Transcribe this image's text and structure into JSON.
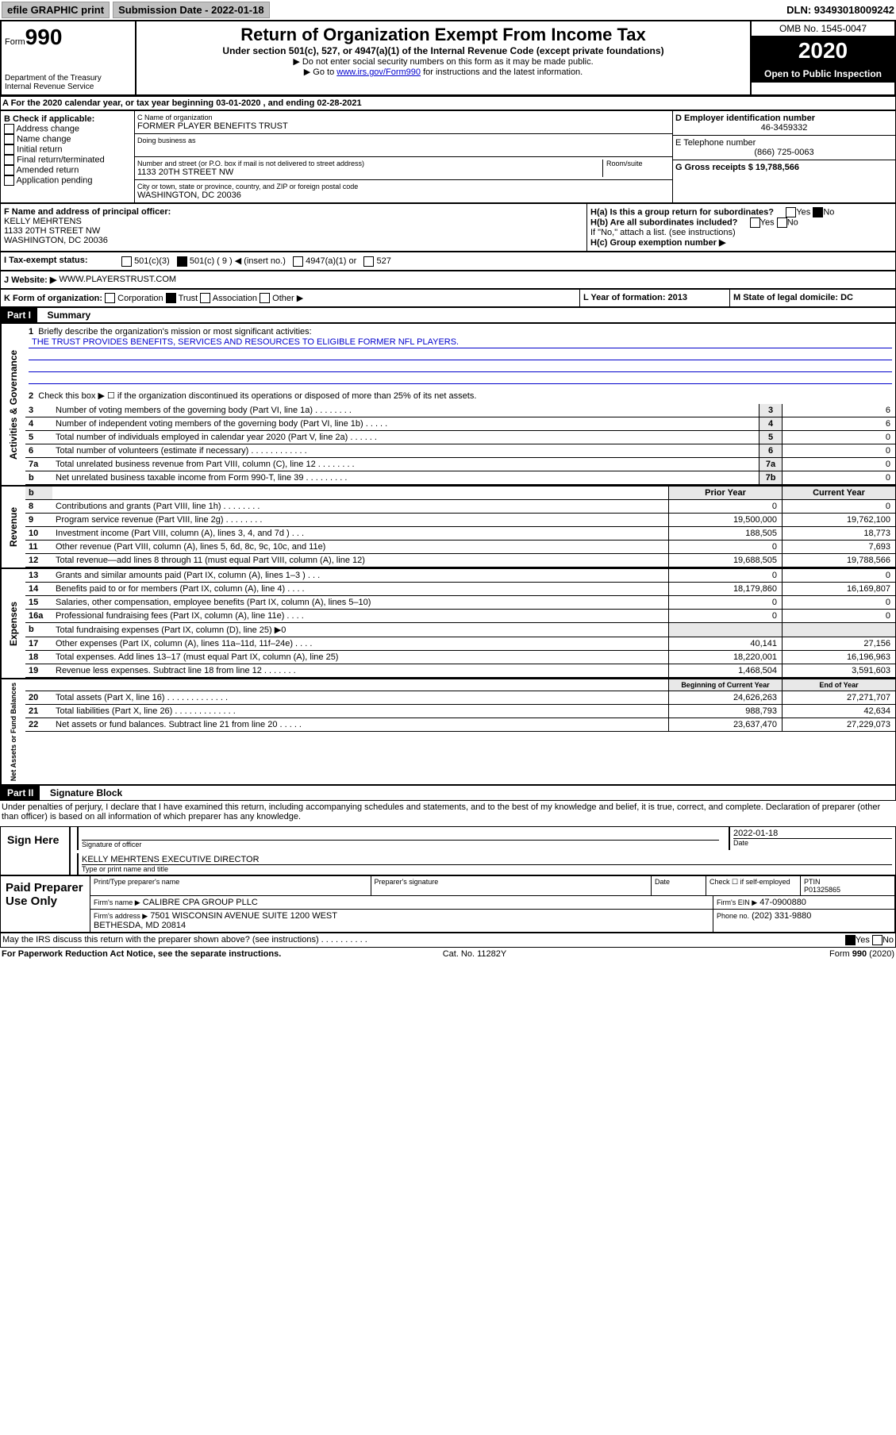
{
  "topbar": {
    "efile": "efile GRAPHIC print",
    "subdate_label": "Submission Date - 2022-01-18",
    "dln": "DLN: 93493018009242"
  },
  "header": {
    "form_label": "Form",
    "form_num": "990",
    "dept": "Department of the Treasury\nInternal Revenue Service",
    "title": "Return of Organization Exempt From Income Tax",
    "sub1": "Under section 501(c), 527, or 4947(a)(1) of the Internal Revenue Code (except private foundations)",
    "sub2": "▶ Do not enter social security numbers on this form as it may be made public.",
    "sub3_a": "▶ Go to ",
    "sub3_link": "www.irs.gov/Form990",
    "sub3_b": " for instructions and the latest information.",
    "omb": "OMB No. 1545-0047",
    "year": "2020",
    "open": "Open to Public Inspection"
  },
  "rowA": "A For the 2020 calendar year, or tax year beginning 03-01-2020    , and ending 02-28-2021",
  "sectB": {
    "label": "B Check if applicable:",
    "opts": [
      "Address change",
      "Name change",
      "Initial return",
      "Final return/terminated",
      "Amended return",
      "Application pending"
    ]
  },
  "sectC": {
    "name_label": "C Name of organization",
    "name": "FORMER PLAYER BENEFITS TRUST",
    "dba_label": "Doing business as",
    "addr_label": "Number and street (or P.O. box if mail is not delivered to street address)",
    "room_label": "Room/suite",
    "addr": "1133 20TH STREET NW",
    "city_label": "City or town, state or province, country, and ZIP or foreign postal code",
    "city": "WASHINGTON, DC  20036"
  },
  "sectD": {
    "label": "D Employer identification number",
    "val": "46-3459332"
  },
  "sectE": {
    "label": "E Telephone number",
    "val": "(866) 725-0063"
  },
  "sectG": {
    "label": "G Gross receipts $ 19,788,566"
  },
  "sectF": {
    "label": "F  Name and address of principal officer:",
    "name": "KELLY MEHRTENS",
    "addr": "1133 20TH STREET NW",
    "city": "WASHINGTON, DC  20036"
  },
  "sectH": {
    "a": "H(a)  Is this a group return for subordinates?",
    "b": "H(b)  Are all subordinates included?",
    "note": "If \"No,\" attach a list. (see instructions)",
    "c": "H(c)  Group exemption number ▶",
    "yes": "Yes",
    "no": "No"
  },
  "sectI": "I    Tax-exempt status:",
  "sectI_opts": {
    "a": "501(c)(3)",
    "b": "501(c) ( 9 ) ◀ (insert no.)",
    "c": "4947(a)(1) or",
    "d": "527"
  },
  "sectJ": {
    "label": "J   Website: ▶",
    "val": "WWW.PLAYERSTRUST.COM"
  },
  "sectK": {
    "label": "K Form of organization:",
    "opts": [
      "Corporation",
      "Trust",
      "Association",
      "Other ▶"
    ]
  },
  "sectL": "L Year of formation: 2013",
  "sectM": "M State of legal domicile: DC",
  "part1": {
    "hdr": "Part I",
    "title": "Summary",
    "side1": "Activities & Governance",
    "l1": "Briefly describe the organization's mission or most significant activities:",
    "mission": "THE TRUST PROVIDES BENEFITS, SERVICES AND RESOURCES TO ELIGIBLE FORMER NFL PLAYERS.",
    "l2": "Check this box ▶ ☐  if the organization discontinued its operations or disposed of more than 25% of its net assets.",
    "lines_gov": [
      {
        "n": "3",
        "t": "Number of voting members of the governing body (Part VI, line 1a)   .    .    .    .    .    .    .    .",
        "c": "3",
        "v": "6"
      },
      {
        "n": "4",
        "t": "Number of independent voting members of the governing body (Part VI, line 1b)   .    .    .    .    .",
        "c": "4",
        "v": "6"
      },
      {
        "n": "5",
        "t": "Total number of individuals employed in calendar year 2020 (Part V, line 2a)   .    .    .    .    .    .",
        "c": "5",
        "v": "0"
      },
      {
        "n": "6",
        "t": "Total number of volunteers (estimate if necessary)   .    .    .    .    .    .    .    .    .    .    .    .",
        "c": "6",
        "v": "0"
      },
      {
        "n": "7a",
        "t": "Total unrelated business revenue from Part VIII, column (C), line 12   .    .    .    .    .    .    .    .",
        "c": "7a",
        "v": "0"
      },
      {
        "n": "b",
        "t": "Net unrelated business taxable income from Form 990-T, line 39   .    .    .    .    .    .    .    .    .",
        "c": "7b",
        "v": "0"
      }
    ],
    "side2": "Revenue",
    "col_prior": "Prior Year",
    "col_curr": "Current Year",
    "lines_rev": [
      {
        "n": "8",
        "t": "Contributions and grants (Part VIII, line 1h)   .    .    .    .    .    .    .    .",
        "p": "0",
        "c": "0"
      },
      {
        "n": "9",
        "t": "Program service revenue (Part VIII, line 2g)   .    .    .    .    .    .    .    .",
        "p": "19,500,000",
        "c": "19,762,100"
      },
      {
        "n": "10",
        "t": "Investment income (Part VIII, column (A), lines 3, 4, and 7d )   .    .    .",
        "p": "188,505",
        "c": "18,773"
      },
      {
        "n": "11",
        "t": "Other revenue (Part VIII, column (A), lines 5, 6d, 8c, 9c, 10c, and 11e)",
        "p": "0",
        "c": "7,693"
      },
      {
        "n": "12",
        "t": "Total revenue—add lines 8 through 11 (must equal Part VIII, column (A), line 12)",
        "p": "19,688,505",
        "c": "19,788,566"
      }
    ],
    "side3": "Expenses",
    "lines_exp": [
      {
        "n": "13",
        "t": "Grants and similar amounts paid (Part IX, column (A), lines 1–3 )   .    .    .",
        "p": "0",
        "c": "0"
      },
      {
        "n": "14",
        "t": "Benefits paid to or for members (Part IX, column (A), line 4)   .    .    .    .",
        "p": "18,179,860",
        "c": "16,169,807"
      },
      {
        "n": "15",
        "t": "Salaries, other compensation, employee benefits (Part IX, column (A), lines 5–10)",
        "p": "0",
        "c": "0"
      },
      {
        "n": "16a",
        "t": "Professional fundraising fees (Part IX, column (A), line 11e)   .    .    .    .",
        "p": "0",
        "c": "0"
      },
      {
        "n": "b",
        "t": "Total fundraising expenses (Part IX, column (D), line 25) ▶0",
        "p": "",
        "c": ""
      },
      {
        "n": "17",
        "t": "Other expenses (Part IX, column (A), lines 11a–11d, 11f–24e)   .    .    .    .",
        "p": "40,141",
        "c": "27,156"
      },
      {
        "n": "18",
        "t": "Total expenses. Add lines 13–17 (must equal Part IX, column (A), line 25)",
        "p": "18,220,001",
        "c": "16,196,963"
      },
      {
        "n": "19",
        "t": "Revenue less expenses. Subtract line 18 from line 12   .    .    .    .    .    .    .",
        "p": "1,468,504",
        "c": "3,591,603"
      }
    ],
    "side4": "Net Assets or Fund Balances",
    "col_beg": "Beginning of Current Year",
    "col_end": "End of Year",
    "lines_net": [
      {
        "n": "20",
        "t": "Total assets (Part X, line 16)   .    .    .    .    .    .    .    .    .    .    .    .    .",
        "p": "24,626,263",
        "c": "27,271,707"
      },
      {
        "n": "21",
        "t": "Total liabilities (Part X, line 26)   .    .    .    .    .    .    .    .    .    .    .    .    .",
        "p": "988,793",
        "c": "42,634"
      },
      {
        "n": "22",
        "t": "Net assets or fund balances. Subtract line 21 from line 20   .    .    .    .    .",
        "p": "23,637,470",
        "c": "27,229,073"
      }
    ]
  },
  "part2": {
    "hdr": "Part II",
    "title": "Signature Block",
    "decl": "Under penalties of perjury, I declare that I have examined this return, including accompanying schedules and statements, and to the best of my knowledge and belief, it is true, correct, and complete. Declaration of preparer (other than officer) is based on all information of which preparer has any knowledge."
  },
  "sign": {
    "label": "Sign Here",
    "sig_label": "Signature of officer",
    "date_label": "Date",
    "date_val": "2022-01-18",
    "name": "KELLY MEHRTENS  EXECUTIVE DIRECTOR",
    "type_label": "Type or print name and title"
  },
  "prep": {
    "label": "Paid Preparer Use Only",
    "h1": "Print/Type preparer's name",
    "h2": "Preparer's signature",
    "h3": "Date",
    "h4_a": "Check ☐ if self-employed",
    "h5": "PTIN",
    "ptin": "P01325865",
    "firm_label": "Firm's name    ▶",
    "firm": "CALIBRE CPA GROUP PLLC",
    "ein_label": "Firm's EIN ▶",
    "ein": "47-0900880",
    "addr_label": "Firm's address ▶",
    "addr": "7501 WISCONSIN AVENUE SUITE 1200 WEST\nBETHESDA, MD  20814",
    "phone_label": "Phone no.",
    "phone": "(202) 331-9880"
  },
  "discuss": "May the IRS discuss this return with the preparer shown above? (see instructions)   .    .    .    .    .    .    .    .    .    .",
  "foot": {
    "left": "For Paperwork Reduction Act Notice, see the separate instructions.",
    "mid": "Cat. No. 11282Y",
    "right": "Form 990 (2020)"
  }
}
